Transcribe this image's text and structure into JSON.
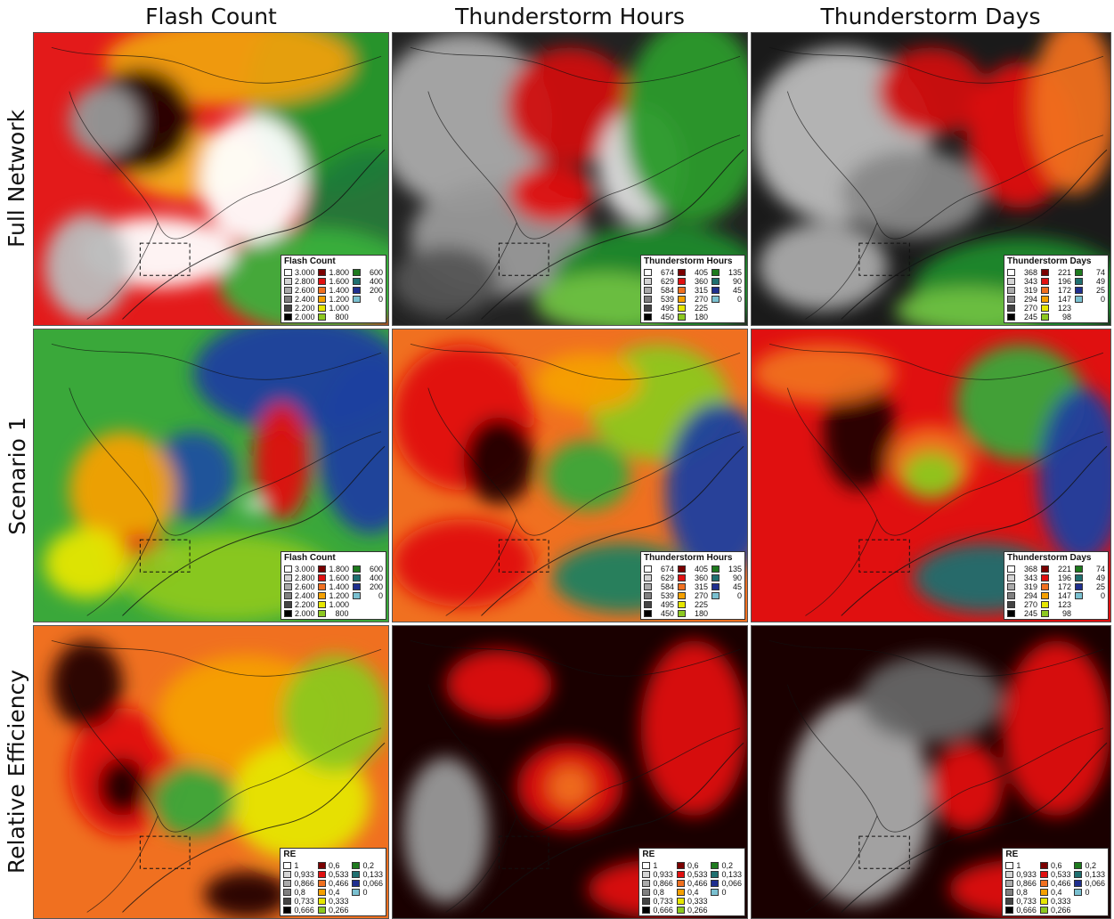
{
  "column_titles": [
    "Flash Count",
    "Thunderstorm Hours",
    "Thunderstorm Days"
  ],
  "row_titles": [
    "Full Network",
    "Scenario 1",
    "Relative Efficiency"
  ],
  "legend_colors": [
    "#ffffff",
    "#d4d4d4",
    "#aaaaaa",
    "#808080",
    "#444444",
    "#000000",
    "#7a0000",
    "#e01010",
    "#f07020",
    "#f5a000",
    "#e6e600",
    "#8cc820",
    "#1e7a1e",
    "#1f6f6f",
    "#1f2f8f",
    "#7ac0d0"
  ],
  "legends": {
    "flash": {
      "title": "Flash Count",
      "values": [
        "3.000",
        "2.800",
        "2.600",
        "2.400",
        "2.200",
        "2.000",
        "1.800",
        "1.600",
        "1.400",
        "1.200",
        "1.000",
        "800",
        "600",
        "400",
        "200",
        "0"
      ]
    },
    "hours": {
      "title": "Thunderstorm Hours",
      "values": [
        "674",
        "629",
        "584",
        "539",
        "495",
        "450",
        "405",
        "360",
        "315",
        "270",
        "225",
        "180",
        "135",
        "90",
        "45",
        "0"
      ]
    },
    "days": {
      "title": "Thunderstorm Days",
      "values": [
        "368",
        "343",
        "319",
        "294",
        "270",
        "245",
        "221",
        "196",
        "172",
        "147",
        "123",
        "98",
        "74",
        "49",
        "25",
        "0"
      ]
    },
    "re": {
      "title": "RE",
      "values": [
        "1",
        "0,933",
        "0,866",
        "0,8",
        "0,733",
        "0,666",
        "0,6",
        "0,533",
        "0,466",
        "0,4",
        "0,333",
        "0,266",
        "0,2",
        "0,133",
        "0,066",
        "0"
      ]
    }
  },
  "panel_legend_keys": [
    [
      "flash",
      "hours",
      "days"
    ],
    [
      "flash",
      "hours",
      "days"
    ],
    [
      "re",
      "re",
      "re"
    ]
  ]
}
